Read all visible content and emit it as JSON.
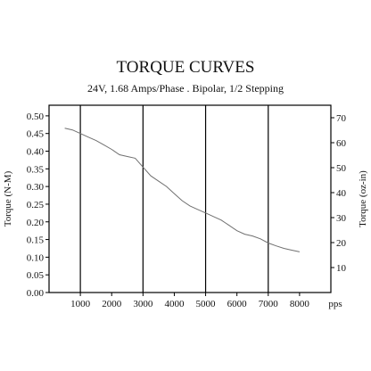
{
  "chart_data": {
    "type": "line",
    "title": "TORQUE CURVES",
    "subtitle": "24V, 1.68 Amps/Phase . Bipolar, 1/2 Stepping",
    "ylabel": "Torque (N-M)",
    "y2label": "Torque (oz-in)",
    "xunit": "pps",
    "xlim": [
      0,
      9000
    ],
    "ylim": [
      0,
      0.53
    ],
    "y2lim": [
      0,
      75
    ],
    "x_ticks": [
      "1000",
      "2000",
      "3000",
      "4000",
      "5000",
      "6000",
      "7000",
      "8000"
    ],
    "y_ticks": [
      "0.00",
      "0.05",
      "0.10",
      "0.15",
      "0.20",
      "0.25",
      "0.30",
      "0.35",
      "0.40",
      "0.45",
      "0.50"
    ],
    "y2_ticks": [
      "10",
      "20",
      "30",
      "40",
      "50",
      "60",
      "70"
    ],
    "vertical_gridlines_at": [
      1000,
      3000,
      5000,
      7000
    ],
    "series": [
      {
        "x": [
          500,
          750,
          1000,
          1250,
          1500,
          1750,
          2000,
          2250,
          2500,
          2750,
          3000,
          3250,
          3500,
          3750,
          4000,
          4250,
          4500,
          4750,
          5000,
          5250,
          5500,
          5750,
          6000,
          6250,
          6500,
          6750,
          7000,
          7250,
          7500,
          7750,
          8000
        ],
        "y": [
          0.465,
          0.46,
          0.45,
          0.44,
          0.43,
          0.418,
          0.405,
          0.39,
          0.385,
          0.38,
          0.355,
          0.33,
          0.315,
          0.3,
          0.28,
          0.26,
          0.245,
          0.235,
          0.225,
          0.215,
          0.205,
          0.19,
          0.175,
          0.165,
          0.16,
          0.152,
          0.14,
          0.132,
          0.125,
          0.12,
          0.115
        ]
      }
    ]
  }
}
